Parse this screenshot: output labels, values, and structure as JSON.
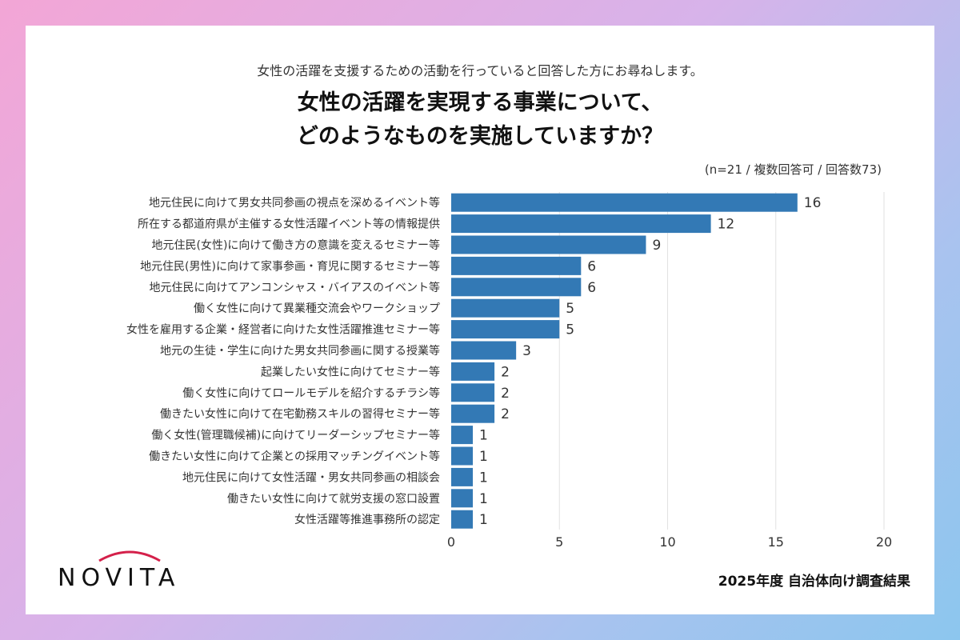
{
  "header": {
    "subtitle": "女性の活躍を支援するための活動を行っていると回答した方にお尋ねします。",
    "title_line1": "女性の活躍を実現する事業について、",
    "title_line2": "どのようなものを実施していますか？",
    "note": "(n=21 / 複数回答可 / 回答数73)"
  },
  "chart_data": {
    "type": "bar",
    "orientation": "horizontal",
    "categories": [
      "地元住民に向けて男女共同参画の視点を深めるイベント等",
      "所在する都道府県が主催する女性活躍イベント等の情報提供",
      "地元住民(女性)に向けて働き方の意識を変えるセミナー等",
      "地元住民(男性)に向けて家事参画・育児に関するセミナー等",
      "地元住民に向けてアンコンシャス・バイアスのイベント等",
      "働く女性に向けて異業種交流会やワークショップ",
      "女性を雇用する企業・経営者に向けた女性活躍推進セミナー等",
      "地元の生徒・学生に向けた男女共同参画に関する授業等",
      "起業したい女性に向けてセミナー等",
      "働く女性に向けてロールモデルを紹介するチラシ等",
      "働きたい女性に向けて在宅勤務スキルの習得セミナー等",
      "働く女性(管理職候補)に向けてリーダーシップセミナー等",
      "働きたい女性に向けて企業との採用マッチングイベント等",
      "地元住民に向けて女性活躍・男女共同参画の相談会",
      "働きたい女性に向けて就労支援の窓口設置",
      "女性活躍等推進事務所の認定"
    ],
    "values": [
      16,
      12,
      9,
      6,
      6,
      5,
      5,
      3,
      2,
      2,
      2,
      1,
      1,
      1,
      1,
      1
    ],
    "xlim": [
      0,
      20
    ],
    "xticks": [
      "0",
      "5",
      "10",
      "15",
      "20"
    ],
    "grid": true,
    "bar_color": "#3379b5"
  },
  "footer": {
    "logo_text": "NOVITA",
    "caption": "2025年度 自治体向け調査結果"
  }
}
